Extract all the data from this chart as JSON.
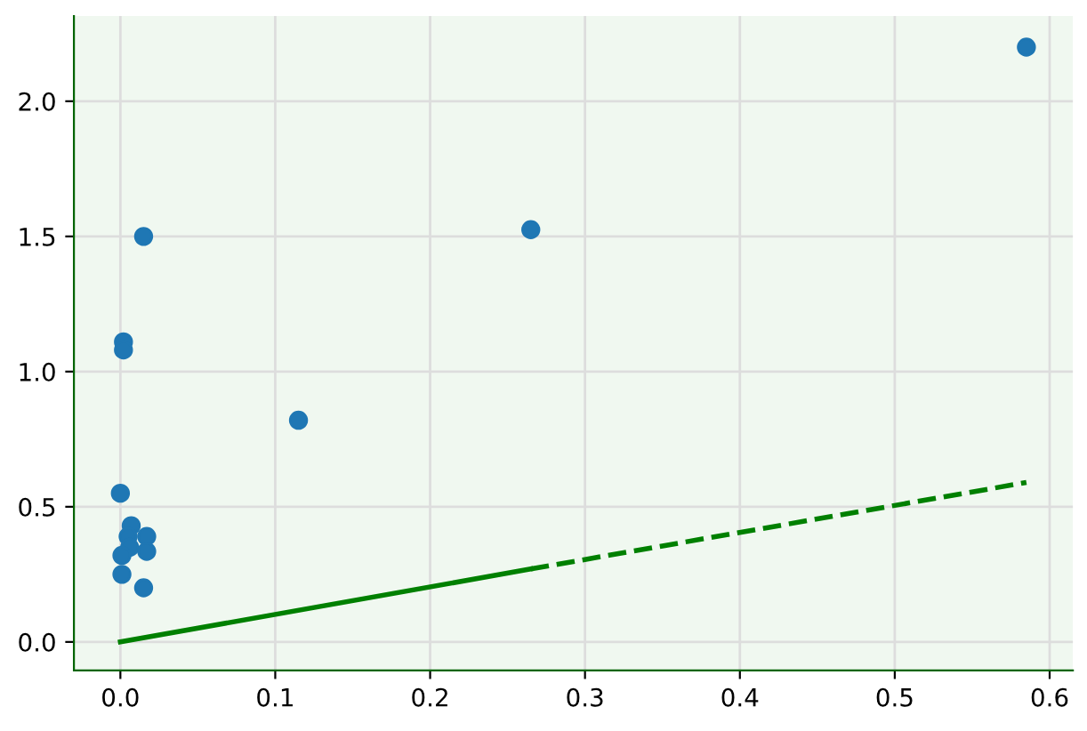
{
  "chart_data": {
    "type": "scatter",
    "series": [
      {
        "marker": "circle",
        "color": "#1f77b4",
        "x": [
          0.0,
          0.007,
          0.005,
          0.006,
          0.001,
          0.017,
          0.017,
          0.001,
          0.015,
          0.002,
          0.002,
          0.015,
          0.115,
          0.265,
          0.585
        ],
        "values": [
          0.55,
          0.43,
          0.39,
          0.35,
          0.32,
          0.39,
          0.335,
          0.25,
          0.2,
          1.11,
          1.08,
          1.5,
          0.82,
          1.525,
          2.2
        ]
      },
      {
        "type": "line",
        "marker": "none",
        "x": [
          0.0,
          0.265
        ],
        "values": [
          0.0,
          0.27
        ],
        "color": "#008000",
        "line_style": "solid"
      },
      {
        "type": "line",
        "marker": "none",
        "x": [
          0.265,
          0.585
        ],
        "values": [
          0.27,
          0.59
        ],
        "color": "#008000",
        "line_style": "dashed"
      }
    ],
    "xlim": [
      -0.03,
      0.615
    ],
    "ylim": [
      -0.105,
      2.315
    ],
    "xticks": [
      {
        "value": 0,
        "label": "0.0"
      },
      0.1,
      0.2,
      0.3,
      0.4,
      0.5,
      0.6
    ],
    "yticks": [
      {
        "value": 0,
        "label": "0.0"
      },
      0.5,
      {
        "value": 1,
        "label": "1.0"
      },
      1.5,
      {
        "value": 2,
        "label": "2.0"
      }
    ],
    "grid": true,
    "legend": false
  }
}
